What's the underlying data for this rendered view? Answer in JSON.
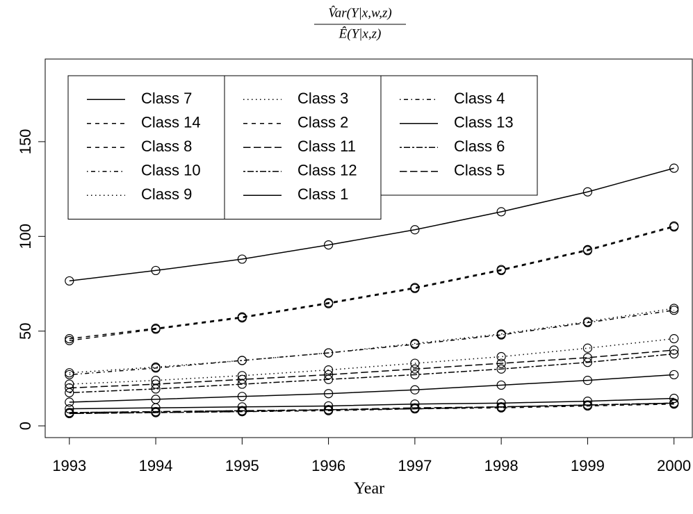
{
  "chart_data": {
    "type": "line",
    "title_numerator": "V̂ar(Y|x,w,z)",
    "title_denominator": "Ê(Y|x,z)",
    "x_label": "Year",
    "x": [
      1993,
      1994,
      1995,
      1996,
      1997,
      1998,
      1999,
      2000
    ],
    "xlim": [
      1992.72,
      2000.22
    ],
    "xticks": [
      1993,
      1994,
      1995,
      1996,
      1997,
      1998,
      1999,
      2000
    ],
    "ylim": [
      -6.2,
      193.6
    ],
    "yticks": [
      0,
      50,
      100,
      150
    ],
    "legend_columns": 3,
    "series": [
      {
        "name": "Class 7",
        "color": "#000000",
        "linetype": "solid",
        "values": [
          76.5,
          82,
          88,
          95.5,
          103.5,
          113,
          123.5,
          136
        ]
      },
      {
        "name": "Class 14",
        "color": "#000000",
        "linetype": "dashed",
        "values": [
          46,
          51.5,
          57.5,
          65,
          73,
          82.5,
          93,
          105.5
        ]
      },
      {
        "name": "Class 8",
        "color": "#000000",
        "linetype": "dashed",
        "values": [
          45,
          51,
          57,
          64.5,
          72.5,
          82,
          92.5,
          105
        ]
      },
      {
        "name": "Class 10",
        "color": "#000000",
        "linetype": "dotdash",
        "values": [
          27,
          30.5,
          34.5,
          38.5,
          43,
          48,
          54.5,
          61
        ]
      },
      {
        "name": "Class 9",
        "color": "#000000",
        "linetype": "dotted",
        "values": [
          28,
          31,
          34.5,
          38.5,
          43.5,
          48.5,
          55,
          62
        ]
      },
      {
        "name": "Class 3",
        "color": "#000000",
        "linetype": "dotted",
        "values": [
          22,
          24,
          26.5,
          29.5,
          33,
          36.5,
          41,
          46
        ]
      },
      {
        "name": "Class 2",
        "color": "#000000",
        "linetype": "dashed",
        "values": [
          6.5,
          7,
          7.5,
          8,
          9,
          9.5,
          10.5,
          11.5
        ]
      },
      {
        "name": "Class 11",
        "color": "#000000",
        "linetype": "longdash",
        "values": [
          20,
          22,
          24.5,
          27,
          30,
          33,
          36,
          40
        ]
      },
      {
        "name": "Class 12",
        "color": "#000000",
        "linetype": "twodash",
        "values": [
          17.5,
          19.5,
          22,
          24.5,
          27,
          30,
          33.5,
          38
        ]
      },
      {
        "name": "Class 1",
        "color": "#000000",
        "linetype": "solid",
        "values": [
          12.5,
          14,
          15.5,
          17,
          19,
          21.5,
          24,
          27
        ]
      },
      {
        "name": "Class 4",
        "color": "#000000",
        "linetype": "dotdash",
        "values": [
          7,
          7.5,
          8,
          8.5,
          9,
          10,
          11,
          12
        ]
      },
      {
        "name": "Class 13",
        "color": "#000000",
        "linetype": "solid",
        "values": [
          9,
          9.5,
          10,
          10.5,
          11.5,
          12,
          13,
          14.5
        ]
      },
      {
        "name": "Class 6",
        "color": "#000000",
        "linetype": "twodash",
        "values": [
          6.5,
          7,
          7.5,
          8.5,
          9,
          10,
          11,
          12
        ]
      },
      {
        "name": "Class 5",
        "color": "#000000",
        "linetype": "longdash",
        "values": [
          7,
          7.5,
          8,
          8.5,
          9.5,
          10,
          11,
          12
        ]
      }
    ]
  }
}
